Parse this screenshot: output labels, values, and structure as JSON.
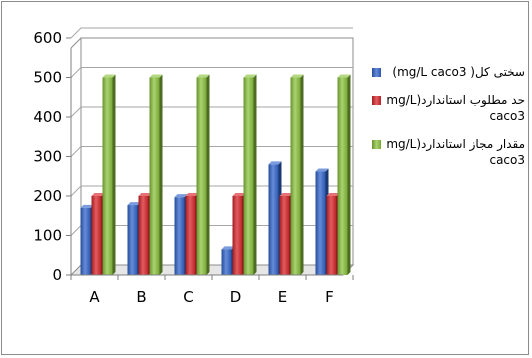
{
  "chart_data": {
    "type": "bar",
    "categories": [
      "A",
      "B",
      "C",
      "D",
      "E",
      "F"
    ],
    "series": [
      {
        "name": "سختی کل( mg/L caco3)",
        "color": "#3366cc",
        "values": [
          170,
          177,
          197,
          65,
          280,
          262
        ]
      },
      {
        "name": "حد مطلوب استاندارد(mg/L caco3",
        "color": "#d9262b",
        "values": [
          200,
          200,
          200,
          200,
          200,
          200
        ]
      },
      {
        "name": "مقدار مجاز استاندارد(mg/L caco3",
        "color": "#8cc43f",
        "values": [
          500,
          500,
          500,
          500,
          500,
          500
        ]
      }
    ],
    "yticks": [
      "0",
      "100",
      "200",
      "300",
      "400",
      "500",
      "600"
    ],
    "ylim": [
      0,
      600
    ],
    "grid": true,
    "legend_position": "right"
  }
}
